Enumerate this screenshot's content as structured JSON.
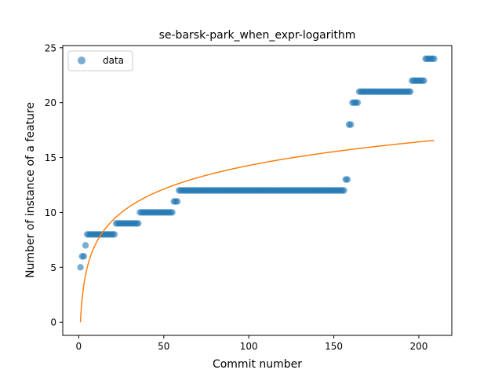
{
  "chart_data": {
    "type": "scatter",
    "title": "se-barsk-park_when_expr-logarithm",
    "xlabel": "Commit number",
    "ylabel": "Number of instance of a feature",
    "xlim": [
      -9.4,
      219.4
    ],
    "ylim": [
      -1.2,
      25.2
    ],
    "xticks": [
      0,
      50,
      100,
      150,
      200
    ],
    "yticks": [
      0,
      5,
      10,
      15,
      20,
      25
    ],
    "legend": {
      "placement": "upper-left",
      "entries": [
        "data"
      ]
    },
    "colors": {
      "data": "#1f77b4",
      "fit": "#ff7f0e"
    },
    "series": [
      {
        "name": "data",
        "kind": "scatter",
        "runs": [
          {
            "from": 1,
            "to": 1,
            "y": 5
          },
          {
            "from": 2,
            "to": 3,
            "y": 6
          },
          {
            "from": 4,
            "to": 4,
            "y": 7
          },
          {
            "from": 5,
            "to": 21,
            "y": 8
          },
          {
            "from": 22,
            "to": 35,
            "y": 9
          },
          {
            "from": 36,
            "to": 55,
            "y": 10
          },
          {
            "from": 56,
            "to": 58,
            "y": 11
          },
          {
            "from": 59,
            "to": 156,
            "y": 12
          },
          {
            "from": 157,
            "to": 158,
            "y": 13
          },
          {
            "from": 159,
            "to": 160,
            "y": 18
          },
          {
            "from": 161,
            "to": 164,
            "y": 20
          },
          {
            "from": 165,
            "to": 195,
            "y": 21
          },
          {
            "from": 196,
            "to": 203,
            "y": 22
          },
          {
            "from": 204,
            "to": 209,
            "y": 24
          }
        ]
      },
      {
        "kind": "line",
        "function": "y = 3.1 * ln(x)",
        "x_range": [
          1,
          209
        ]
      }
    ]
  }
}
